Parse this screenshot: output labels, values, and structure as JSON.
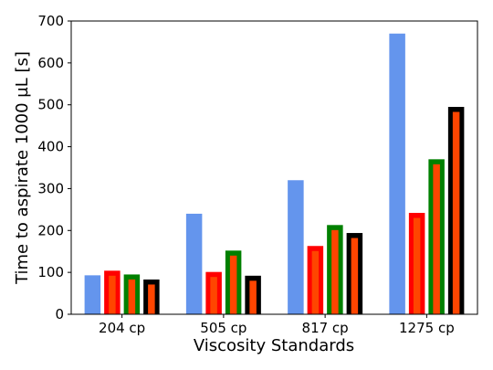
{
  "chart_data": {
    "type": "bar",
    "xlabel": "Viscosity Standards",
    "ylabel": "Time to aspirate 1000 µL [s]",
    "categories": [
      "204 cp",
      "505 cp",
      "817 cp",
      "1275 cp"
    ],
    "ylim": [
      0,
      700
    ],
    "yticks": [
      0,
      100,
      200,
      300,
      400,
      500,
      600,
      700
    ],
    "grid": false,
    "series": [
      {
        "values": [
          93,
          240,
          320,
          670
        ],
        "color": "#6495ED",
        "edge_color": null,
        "inner_values": null
      },
      {
        "values": [
          104,
          101,
          163,
          242
        ],
        "color": "#FF0000",
        "edge_color": "#FF0000",
        "inner_values": [
          92,
          89,
          151,
          230
        ],
        "inner_color": "#FF4500"
      },
      {
        "values": [
          95,
          152,
          213,
          370
        ],
        "color": "#008000",
        "edge_color": "#008000",
        "inner_values": [
          83,
          140,
          201,
          358
        ],
        "inner_color": "#FF4500"
      },
      {
        "values": [
          83,
          92,
          194,
          495
        ],
        "color": "#000000",
        "edge_color": "#000000",
        "inner_values": [
          71,
          80,
          182,
          483
        ],
        "inner_color": "#FF4500"
      }
    ]
  }
}
